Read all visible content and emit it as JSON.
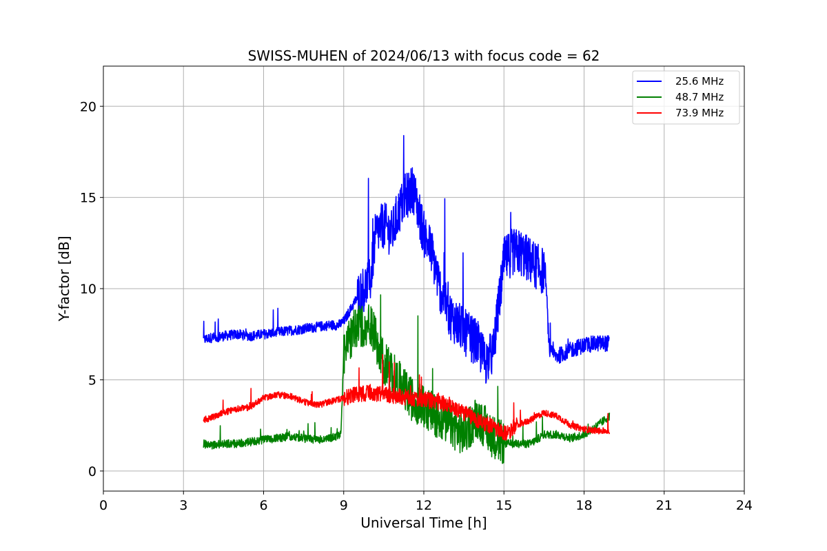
{
  "chart_data": {
    "type": "line",
    "title": "SWISS-MUHEN of 2024/06/13 with focus code = 62",
    "xlabel": "Universal Time [h]",
    "ylabel": "Y-factor [dB]",
    "xlim": [
      0,
      24
    ],
    "ylim": [
      -1.1,
      22.2
    ],
    "xticks": [
      0,
      3,
      6,
      9,
      12,
      15,
      18,
      21,
      24
    ],
    "yticks": [
      0,
      5,
      10,
      15,
      20
    ],
    "grid": true,
    "legend_position": "top-right",
    "series": [
      {
        "name": "25.6 MHz",
        "color": "#0000ff",
        "x": [
          3.75,
          4.0,
          4.5,
          5.0,
          5.5,
          6.0,
          6.5,
          7.0,
          7.5,
          8.0,
          8.5,
          8.8,
          9.0,
          9.5,
          10.0,
          10.2,
          10.5,
          10.8,
          11.0,
          11.3,
          11.6,
          12.0,
          12.3,
          12.6,
          13.0,
          13.3,
          13.6,
          14.0,
          14.3,
          14.6,
          14.8,
          15.0,
          15.3,
          15.6,
          16.0,
          16.4,
          16.55,
          16.7,
          17.0,
          17.3,
          17.6,
          18.0,
          18.5,
          18.95
        ],
        "y": [
          7.2,
          7.3,
          7.4,
          7.5,
          7.4,
          7.5,
          7.6,
          7.7,
          7.8,
          7.9,
          8.0,
          8.0,
          8.2,
          9.5,
          10.5,
          13.0,
          13.5,
          13.0,
          14.0,
          15.0,
          15.5,
          13.0,
          12.0,
          10.0,
          8.5,
          8.0,
          7.5,
          7.0,
          6.0,
          6.5,
          9.0,
          11.5,
          12.0,
          12.0,
          11.5,
          11.0,
          11.0,
          6.5,
          6.3,
          6.5,
          6.7,
          6.9,
          7.0,
          7.0
        ]
      },
      {
        "name": "48.7 MHz",
        "color": "#008000",
        "x": [
          3.75,
          4.0,
          4.5,
          5.0,
          5.5,
          6.0,
          6.5,
          7.0,
          7.5,
          8.0,
          8.5,
          8.9,
          9.0,
          9.5,
          10.0,
          10.5,
          11.0,
          11.5,
          12.0,
          12.5,
          13.0,
          13.5,
          14.0,
          14.5,
          15.0,
          15.5,
          16.0,
          16.5,
          17.0,
          17.5,
          18.0,
          18.5,
          18.95
        ],
        "y": [
          1.5,
          1.4,
          1.5,
          1.5,
          1.6,
          1.7,
          1.8,
          1.9,
          1.8,
          1.7,
          1.8,
          2.0,
          6.5,
          8.0,
          8.0,
          6.0,
          5.0,
          4.0,
          3.5,
          3.0,
          2.5,
          2.0,
          3.0,
          2.0,
          1.5,
          1.5,
          1.5,
          2.0,
          2.0,
          1.8,
          2.0,
          2.5,
          3.0
        ]
      },
      {
        "name": "73.9 MHz",
        "color": "#ff0000",
        "x": [
          3.75,
          4.0,
          4.5,
          5.0,
          5.5,
          6.0,
          6.5,
          7.0,
          7.5,
          8.0,
          8.5,
          9.0,
          9.5,
          10.0,
          10.5,
          11.0,
          11.5,
          12.0,
          12.5,
          13.0,
          13.5,
          14.0,
          14.5,
          15.0,
          15.5,
          16.0,
          16.5,
          17.0,
          17.5,
          18.0,
          18.5,
          18.95
        ],
        "y": [
          2.8,
          2.9,
          3.2,
          3.4,
          3.5,
          4.0,
          4.2,
          4.1,
          3.8,
          3.6,
          3.8,
          4.0,
          4.2,
          4.3,
          4.2,
          4.1,
          4.0,
          3.9,
          3.8,
          3.6,
          3.2,
          2.8,
          2.5,
          2.0,
          2.5,
          2.8,
          3.2,
          3.0,
          2.5,
          2.3,
          2.2,
          2.2
        ]
      }
    ]
  }
}
